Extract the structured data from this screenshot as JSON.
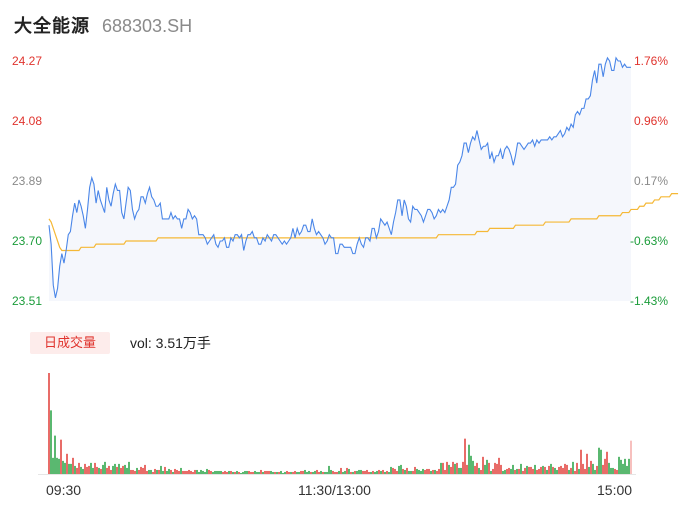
{
  "header": {
    "name": "大全能源",
    "code": "688303.SH"
  },
  "price_axis": {
    "labels": [
      "24.27",
      "24.08",
      "23.89",
      "23.70",
      "23.51"
    ],
    "pct_labels": [
      "1.76%",
      "0.96%",
      "0.17%",
      "-0.63%",
      "-1.43%"
    ]
  },
  "volume": {
    "badge": "日成交量",
    "text": "vol: 3.51万手"
  },
  "time_axis": {
    "labels": [
      "09:30",
      "11:30/13:00",
      "15:00"
    ]
  },
  "colors": {
    "up": "#e0342e",
    "down": "#1b9c3a",
    "neutral": "#8a8a8a",
    "price_line": "#4a86e8",
    "avg_line": "#f5b836",
    "fill": "#f5f7fc"
  },
  "chart_data": {
    "type": "line",
    "title": "",
    "ylim": [
      23.51,
      24.27
    ],
    "prev_close": 23.85,
    "series": [
      {
        "values": [
          23.75,
          23.69,
          23.56,
          23.52,
          23.55,
          23.62,
          23.66,
          23.63,
          23.67,
          23.72,
          23.73,
          23.78,
          23.82,
          23.79,
          23.83,
          23.81,
          23.78,
          23.74,
          23.8,
          23.87,
          23.9,
          23.88,
          23.82,
          23.86,
          23.83,
          23.81,
          23.79,
          23.87,
          23.83,
          23.81,
          23.85,
          23.88,
          23.86,
          23.86,
          23.79,
          23.77,
          23.82,
          23.87,
          23.86,
          23.8,
          23.77,
          23.79,
          23.8,
          23.84,
          23.84,
          23.82,
          23.85,
          23.87,
          23.84,
          23.83,
          23.81,
          23.81,
          23.82,
          23.77,
          23.77,
          23.77,
          23.77,
          23.79,
          23.77,
          23.78,
          23.77,
          23.77,
          23.74,
          23.77,
          23.77,
          23.8,
          23.79,
          23.77,
          23.78,
          23.77,
          23.72,
          23.72,
          23.72,
          23.71,
          23.69,
          23.7,
          23.71,
          23.72,
          23.69,
          23.68,
          23.7,
          23.7,
          23.71,
          23.68,
          23.68,
          23.71,
          23.7,
          23.72,
          23.72,
          23.71,
          23.72,
          23.67,
          23.7,
          23.72,
          23.72,
          23.73,
          23.71,
          23.71,
          23.69,
          23.69,
          23.71,
          23.7,
          23.72,
          23.71,
          23.7,
          23.72,
          23.72,
          23.71,
          23.7,
          23.69,
          23.7,
          23.69,
          23.7,
          23.71,
          23.74,
          23.71,
          23.74,
          23.72,
          23.73,
          23.75,
          23.75,
          23.73,
          23.73,
          23.77,
          23.74,
          23.72,
          23.73,
          23.72,
          23.71,
          23.69,
          23.7,
          23.72,
          23.71,
          23.71,
          23.66,
          23.66,
          23.69,
          23.69,
          23.68,
          23.68,
          23.68,
          23.68,
          23.66,
          23.66,
          23.69,
          23.71,
          23.69,
          23.68,
          23.71,
          23.71,
          23.7,
          23.74,
          23.74,
          23.71,
          23.73,
          23.77,
          23.76,
          23.75,
          23.76,
          23.74,
          23.72,
          23.76,
          23.79,
          23.83,
          23.83,
          23.78,
          23.83,
          23.81,
          23.77,
          23.76,
          23.81,
          23.8,
          23.8,
          23.79,
          23.78,
          23.76,
          23.78,
          23.8,
          23.8,
          23.79,
          23.77,
          23.78,
          23.8,
          23.79,
          23.8,
          23.79,
          23.81,
          23.83,
          23.87,
          23.87,
          23.88,
          23.94,
          23.95,
          23.97,
          24.01,
          24.01,
          23.98,
          24.01,
          24.03,
          24.02,
          24.05,
          24.02,
          23.99,
          24.0,
          24.0,
          24.01,
          23.96,
          23.98,
          23.95,
          23.97,
          23.97,
          23.99,
          23.96,
          23.99,
          24.0,
          23.99,
          23.97,
          23.94,
          23.97,
          24.01,
          24.01,
          24.0,
          23.99,
          24.0,
          24.01,
          24.01,
          24.02,
          24.0,
          24.02,
          24.01,
          24.02,
          24.02,
          24.02,
          24.02,
          24.03,
          24.02,
          24.03,
          24.03,
          24.04,
          24.05,
          24.03,
          24.04,
          24.06,
          24.05,
          24.07,
          24.06,
          24.1,
          24.11,
          24.1,
          24.12,
          24.12,
          24.15,
          24.15,
          24.16,
          24.21,
          24.24,
          24.2,
          24.26,
          24.26,
          24.22,
          24.26,
          24.28,
          24.27,
          24.24,
          24.24,
          24.28,
          24.27,
          24.27,
          24.25,
          24.26,
          24.25,
          24.25,
          24.25
        ]
      },
      {
        "values": [
          23.77,
          23.76,
          23.74,
          23.72,
          23.7,
          23.68,
          23.67,
          23.67,
          23.67,
          23.67,
          23.67,
          23.67,
          23.67,
          23.67,
          23.67,
          23.68,
          23.68,
          23.68,
          23.68,
          23.68,
          23.68,
          23.68,
          23.69,
          23.69,
          23.69,
          23.69,
          23.69,
          23.69,
          23.69,
          23.69,
          23.69,
          23.69,
          23.69,
          23.69,
          23.69,
          23.69,
          23.7,
          23.7,
          23.7,
          23.7,
          23.7,
          23.7,
          23.7,
          23.7,
          23.7,
          23.7,
          23.7,
          23.7,
          23.7,
          23.7,
          23.7,
          23.71,
          23.71,
          23.71,
          23.71,
          23.71,
          23.71,
          23.71,
          23.71,
          23.71,
          23.71,
          23.71,
          23.71,
          23.71,
          23.71,
          23.71,
          23.71,
          23.71,
          23.71,
          23.71,
          23.71,
          23.71,
          23.71,
          23.71,
          23.71,
          23.71,
          23.71,
          23.71,
          23.71,
          23.71,
          23.71,
          23.71,
          23.71,
          23.71,
          23.71,
          23.71,
          23.71,
          23.71,
          23.71,
          23.71,
          23.71,
          23.71,
          23.71,
          23.71,
          23.71,
          23.71,
          23.71,
          23.71,
          23.71,
          23.71,
          23.71,
          23.71,
          23.71,
          23.71,
          23.71,
          23.71,
          23.71,
          23.71,
          23.71,
          23.71,
          23.71,
          23.71,
          23.71,
          23.71,
          23.71,
          23.71,
          23.71,
          23.71,
          23.71,
          23.71,
          23.71,
          23.71,
          23.71,
          23.71,
          23.71,
          23.71,
          23.71,
          23.71,
          23.71,
          23.71,
          23.71,
          23.71,
          23.71,
          23.71,
          23.71,
          23.71,
          23.71,
          23.71,
          23.71,
          23.71,
          23.71,
          23.71,
          23.71,
          23.71,
          23.71,
          23.71,
          23.71,
          23.71,
          23.71,
          23.71,
          23.71,
          23.71,
          23.71,
          23.71,
          23.71,
          23.71,
          23.71,
          23.71,
          23.71,
          23.71,
          23.71,
          23.71,
          23.71,
          23.71,
          23.71,
          23.71,
          23.71,
          23.71,
          23.71,
          23.71,
          23.71,
          23.71,
          23.71,
          23.71,
          23.71,
          23.71,
          23.71,
          23.71,
          23.71,
          23.71,
          23.71,
          23.71,
          23.72,
          23.72,
          23.72,
          23.72,
          23.72,
          23.72,
          23.72,
          23.72,
          23.72,
          23.72,
          23.72,
          23.72,
          23.72,
          23.72,
          23.72,
          23.72,
          23.72,
          23.72,
          23.73,
          23.73,
          23.73,
          23.73,
          23.73,
          23.73,
          23.74,
          23.74,
          23.74,
          23.74,
          23.74,
          23.74,
          23.74,
          23.74,
          23.74,
          23.74,
          23.74,
          23.74,
          23.75,
          23.75,
          23.75,
          23.75,
          23.75,
          23.75,
          23.75,
          23.75,
          23.75,
          23.75,
          23.75,
          23.75,
          23.75,
          23.75,
          23.76,
          23.76,
          23.76,
          23.76,
          23.76,
          23.76,
          23.76,
          23.76,
          23.76,
          23.76,
          23.76,
          23.76,
          23.77,
          23.77,
          23.77,
          23.77,
          23.77,
          23.77,
          23.77,
          23.77,
          23.77,
          23.77,
          23.77,
          23.77,
          23.77,
          23.78,
          23.78,
          23.78,
          23.78,
          23.78,
          23.78,
          23.78,
          23.78,
          23.78,
          23.78,
          23.78,
          23.79,
          23.79,
          23.79,
          23.79,
          23.8,
          23.8,
          23.8,
          23.8,
          23.81,
          23.81,
          23.81,
          23.82,
          23.82,
          23.82,
          23.82,
          23.83,
          23.83,
          23.83,
          23.84,
          23.84,
          23.84,
          23.84,
          23.84,
          23.85,
          23.85,
          23.85,
          23.85
        ]
      }
    ],
    "volume": [
      100,
      63,
      16,
      38,
      16,
      15,
      34,
      13,
      11,
      20,
      10,
      10,
      16,
      8,
      6,
      11,
      7,
      5,
      10,
      7,
      8,
      11,
      6,
      11,
      7,
      6,
      5,
      9,
      12,
      6,
      8,
      4,
      8,
      10,
      7,
      10,
      6,
      8,
      9,
      6,
      12,
      4,
      4,
      3,
      6,
      4,
      7,
      6,
      9,
      3,
      4,
      4,
      2,
      5,
      4,
      4,
      8,
      3,
      7,
      3,
      5,
      4,
      2,
      5,
      4,
      3,
      6,
      3,
      3,
      3,
      4,
      3,
      2,
      4,
      4,
      2,
      4,
      3,
      2,
      5,
      4,
      3,
      2,
      3,
      3,
      3,
      3,
      2,
      3,
      2,
      3,
      3,
      2,
      2,
      3,
      2,
      1,
      2,
      3,
      3,
      3,
      2,
      2,
      3,
      2,
      2,
      4,
      2,
      3,
      3,
      3,
      3,
      2,
      2,
      2,
      2,
      3,
      1,
      2,
      3,
      2,
      2,
      2,
      3,
      2,
      2,
      3,
      3,
      4,
      2,
      3,
      2,
      2,
      3,
      4,
      2,
      3,
      2,
      2,
      2,
      8,
      4,
      3,
      2,
      2,
      3,
      6,
      2,
      3,
      6,
      5,
      2,
      2,
      3,
      3,
      4,
      4,
      3,
      3,
      4,
      2,
      2,
      3,
      2,
      3,
      4,
      3,
      4,
      2,
      3,
      2,
      7,
      6,
      5,
      3,
      8,
      9,
      5,
      4,
      6,
      3,
      3,
      3,
      7,
      5,
      4,
      3,
      5,
      4,
      5,
      5,
      3,
      4,
      4,
      3,
      5,
      11,
      11,
      4,
      12,
      9,
      7,
      12,
      10,
      11,
      6,
      6,
      12,
      35,
      9,
      29,
      18,
      13,
      8,
      11,
      6,
      4,
      17,
      9,
      14,
      11,
      3,
      5,
      11,
      10,
      16,
      9,
      3,
      4,
      5,
      6,
      5,
      9,
      4,
      5,
      5,
      10,
      3,
      6,
      8,
      7,
      7,
      5,
      9,
      4,
      5,
      7,
      8,
      7,
      4,
      8,
      10,
      7,
      6,
      4,
      7,
      8,
      6,
      10,
      9,
      4,
      6,
      12,
      3,
      11,
      5,
      24,
      10,
      5,
      20,
      7,
      13,
      10,
      4,
      8,
      26,
      24,
      9,
      15,
      22,
      11,
      6,
      6,
      5,
      4,
      17,
      14,
      10,
      15,
      8,
      15,
      33
    ],
    "volume_up": [
      true,
      false,
      false,
      false,
      false,
      false,
      true,
      false,
      false,
      true,
      false,
      false,
      true,
      false,
      true,
      true,
      false,
      false,
      true,
      true,
      true,
      false,
      false,
      true,
      true,
      false,
      true,
      false,
      false,
      true,
      true,
      true,
      false,
      false,
      true,
      false,
      true,
      true,
      false,
      false,
      false,
      true,
      true,
      true,
      false,
      true,
      true,
      true,
      true,
      true,
      false,
      false,
      true,
      true,
      false,
      true,
      false,
      false,
      true,
      false,
      false,
      true,
      false,
      true,
      true,
      true,
      false,
      true,
      true,
      true,
      true,
      true,
      true,
      true,
      false,
      false,
      false,
      false,
      false,
      false,
      true,
      true,
      false,
      false,
      false,
      false,
      false,
      true,
      true,
      true,
      false,
      true,
      false,
      true,
      false,
      true,
      false,
      false,
      false,
      false,
      true,
      true,
      true,
      false,
      false,
      false,
      true,
      false,
      true,
      true,
      true,
      false,
      false,
      true,
      false,
      true,
      false,
      false,
      false,
      true,
      true,
      false,
      true,
      true,
      false,
      false,
      true,
      true,
      false,
      false,
      false,
      true,
      false,
      false,
      true,
      true,
      false,
      true,
      false,
      false,
      false,
      false,
      true,
      true,
      true,
      false,
      true,
      false,
      false,
      true,
      false,
      true,
      false,
      true,
      false,
      false,
      false,
      true,
      true,
      true,
      true,
      false,
      true,
      false,
      false,
      true,
      false,
      true,
      false,
      true,
      false,
      false,
      true,
      true,
      true,
      false,
      false,
      true,
      false,
      true,
      false,
      false,
      true,
      true,
      false,
      false,
      false,
      false,
      true,
      true,
      true,
      false,
      true,
      false,
      true,
      true,
      false,
      true,
      true,
      true,
      false,
      true,
      true,
      false,
      true,
      false,
      false,
      true,
      true,
      true,
      false,
      false,
      false,
      true,
      true,
      false,
      true,
      true,
      false,
      false,
      true,
      false,
      true,
      true,
      true,
      true,
      true,
      false,
      false,
      true,
      true,
      false,
      false,
      true,
      false,
      true,
      false,
      true,
      true,
      false,
      true,
      true,
      true,
      false,
      true,
      true,
      true,
      false,
      true,
      false,
      true,
      false,
      true,
      false,
      false,
      true,
      true,
      true,
      true,
      true,
      false,
      true,
      false,
      true,
      true,
      false,
      true,
      true,
      true,
      true,
      false,
      true,
      false,
      false,
      true,
      false,
      false,
      true,
      true,
      true,
      false,
      false,
      false,
      true,
      true,
      false,
      false,
      false
    ]
  }
}
